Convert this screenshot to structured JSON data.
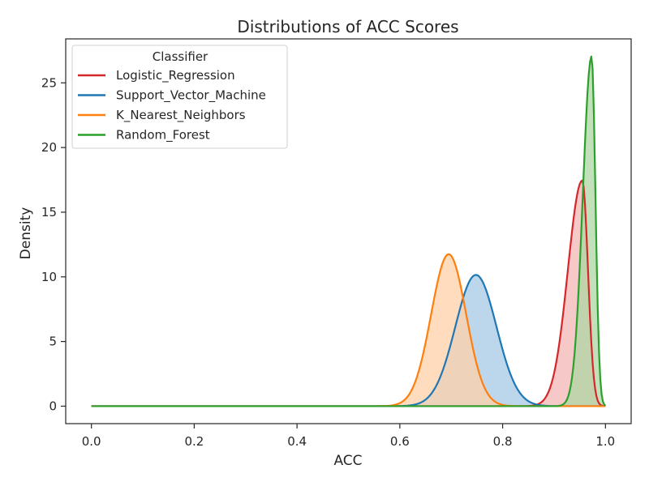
{
  "chart_data": {
    "type": "area",
    "title": "Distributions of ACC Scores",
    "xlabel": "ACC",
    "ylabel": "Density",
    "xlim": [
      -0.05,
      1.05
    ],
    "ylim": [
      -1.35,
      28.4
    ],
    "x_ticks": [
      0.0,
      0.2,
      0.4,
      0.6,
      0.8,
      1.0
    ],
    "x_tick_labels": [
      "0.0",
      "0.2",
      "0.4",
      "0.6",
      "0.8",
      "1.0"
    ],
    "y_ticks": [
      0,
      5,
      10,
      15,
      20,
      25
    ],
    "y_tick_labels": [
      "0",
      "5",
      "10",
      "15",
      "20",
      "25"
    ],
    "grid": false,
    "x_range": [
      0.0,
      1.0
    ],
    "legend": {
      "title": "Classifier",
      "placement": "top-left"
    },
    "series": [
      {
        "name": "Logistic_Regression",
        "color": "#d62728",
        "fill": "#f4b5b5",
        "peak_x": 0.955,
        "peak_density": 17.45,
        "left_width": 0.028,
        "right_width": 0.011
      },
      {
        "name": "Support_Vector_Machine",
        "color": "#1f77b4",
        "fill": "#a6c8e5",
        "peak_x": 0.748,
        "peak_density": 10.15,
        "left_width": 0.04,
        "right_width": 0.04
      },
      {
        "name": "K_Nearest_Neighbors",
        "color": "#ff7f0e",
        "fill": "#ffd0a8",
        "peak_x": 0.695,
        "peak_density": 11.75,
        "left_width": 0.034,
        "right_width": 0.034
      },
      {
        "name": "Random_Forest",
        "color": "#2ca02c",
        "fill": "#aed7a4",
        "peak_x": 0.973,
        "peak_density": 27.05,
        "left_width": 0.017,
        "right_width": 0.0075
      }
    ]
  }
}
